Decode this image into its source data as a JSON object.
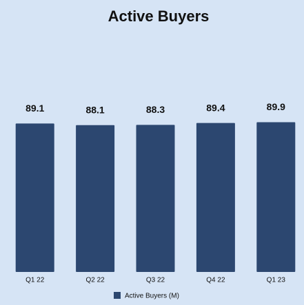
{
  "chart_data": {
    "type": "bar",
    "title": "Active Buyers",
    "categories": [
      "Q1 22",
      "Q2 22",
      "Q3 22",
      "Q4 22",
      "Q1 23"
    ],
    "series": [
      {
        "name": "Active Buyers (M)",
        "color": "#2c4770",
        "values": [
          89.1,
          88.1,
          88.3,
          89.4,
          89.9
        ]
      }
    ],
    "ylim": [
      0,
      100
    ]
  }
}
